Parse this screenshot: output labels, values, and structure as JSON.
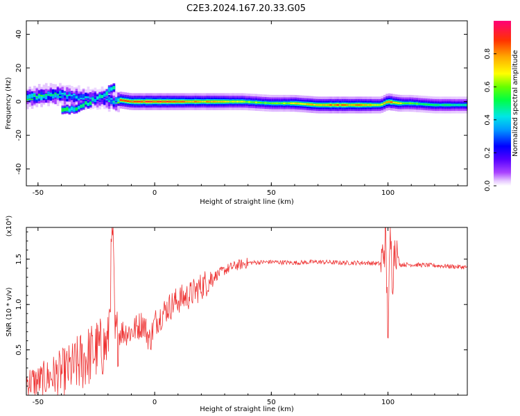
{
  "figure": {
    "title": "C2E3.2024.167.20.33.G05"
  },
  "chart_data": [
    {
      "type": "heatmap",
      "title": "C2E3.2024.167.20.33.G05",
      "xlabel": "Height of straight line (km)",
      "ylabel": "Frequency (Hz)",
      "xlim": [
        -55,
        134
      ],
      "ylim": [
        -50,
        48
      ],
      "x_ticks": [
        -50,
        0,
        50,
        100
      ],
      "y_ticks": [
        -40,
        -20,
        0,
        20,
        40
      ],
      "colorbar": {
        "label": "Normalized spectral amplitude",
        "range": [
          0.0,
          1.0
        ],
        "ticks": [
          0.0,
          0.2,
          0.4,
          0.6,
          0.8
        ]
      },
      "ridge": {
        "x": [
          -55,
          -50,
          -45,
          -40,
          -35,
          -30,
          -25,
          -20,
          -16,
          -15,
          -10,
          0,
          10,
          20,
          30,
          38,
          50,
          60,
          70,
          80,
          90,
          97,
          100,
          105,
          110,
          120,
          134
        ],
        "frequency": [
          2,
          3,
          4,
          4,
          3,
          2,
          2,
          1,
          0,
          1,
          0,
          0,
          0,
          0,
          0,
          0,
          -1,
          -1,
          -2,
          -2,
          -2,
          -2,
          0,
          -1,
          -1,
          -2,
          -2
        ],
        "amplitude": [
          0.55,
          0.6,
          0.55,
          0.5,
          0.45,
          0.45,
          0.4,
          0.45,
          0.5,
          0.9,
          0.95,
          0.95,
          0.9,
          0.85,
          0.75,
          0.7,
          0.6,
          0.75,
          0.85,
          0.9,
          0.85,
          0.7,
          0.95,
          0.7,
          0.6,
          0.55,
          0.5
        ]
      },
      "secondary_branch": {
        "x": [
          -40,
          -35,
          -30,
          -25,
          -20,
          -17
        ],
        "frequency": [
          -5,
          -4,
          -2,
          2,
          6,
          8
        ]
      }
    },
    {
      "type": "line",
      "xlabel": "Height of straight line (km)",
      "ylabel": "SNR (10 * v/v)",
      "y_multiplier": "(x10⁴)",
      "xlim": [
        -55,
        134
      ],
      "ylim": [
        0.0,
        1.85
      ],
      "x_ticks": [
        -50,
        0,
        50,
        100
      ],
      "y_ticks": [
        0.5,
        1.0,
        1.5
      ],
      "line_color": "#ee3333",
      "series": [
        {
          "x": [
            -55,
            -50,
            -45,
            -40,
            -35,
            -30,
            -25,
            -20,
            -18,
            -17,
            -15,
            -10,
            -5,
            -2,
            0,
            5,
            10,
            15,
            20,
            25,
            30,
            35,
            40,
            50,
            60,
            70,
            80,
            90,
            97,
            99,
            100,
            101,
            102,
            103,
            105,
            110,
            120,
            134
          ],
          "values": [
            0.15,
            0.15,
            0.2,
            0.25,
            0.3,
            0.4,
            0.5,
            0.55,
            1.85,
            0.6,
            0.7,
            0.7,
            0.8,
            0.6,
            0.8,
            0.95,
            1.05,
            1.1,
            1.2,
            1.3,
            1.38,
            1.43,
            1.46,
            1.47,
            1.46,
            1.47,
            1.46,
            1.46,
            1.45,
            1.7,
            0.68,
            1.75,
            1.3,
            1.7,
            1.44,
            1.44,
            1.43,
            1.41
          ]
        }
      ]
    }
  ]
}
